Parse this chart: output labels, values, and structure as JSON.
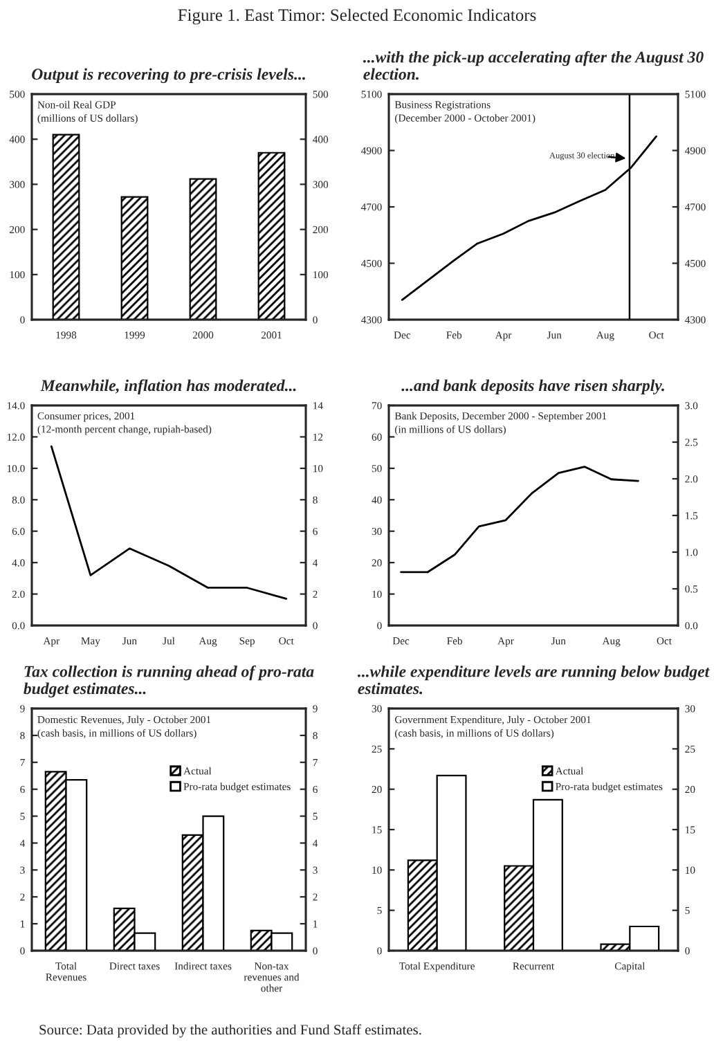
{
  "chart_data": [
    {
      "type": "bar",
      "title": "Output is recovering to pre-crisis levels...",
      "subtitle": "Non-oil Real GDP\n(millions of US dollars)",
      "annotations": [
        "Figure 1. East Timor: Selected Economic Indicators"
      ],
      "categories": [
        "1998",
        "1999",
        "2000",
        "2001"
      ],
      "series": [
        {
          "color": "#000000",
          "values": [
            410,
            272,
            312,
            370
          ]
        }
      ],
      "ylim": [
        0,
        500
      ],
      "yticks": [
        0,
        100,
        200,
        300,
        400,
        500
      ],
      "y2lim": [
        0,
        500
      ],
      "y2ticks": [
        0,
        100,
        200,
        300,
        400,
        500
      ]
    },
    {
      "type": "line",
      "title": "...with the pick-up accelerating after the August 30 election.",
      "subtitle": "Business Registrations\n(December 2000 - October 2001)",
      "annotations": [
        "August 30 election"
      ],
      "x": [
        "2000-12-01",
        "2001-01-01",
        "2001-02-01",
        "2001-03-01",
        "2001-04-01",
        "2001-05-01",
        "2001-06-01",
        "2001-07-01",
        "2001-08-01",
        "2001-09-01",
        "2001-10-01"
      ],
      "series": [
        {
          "color": "#000000",
          "values": [
            4370,
            4440,
            4510,
            4570,
            4605,
            4650,
            4680,
            4720,
            4760,
            4840,
            4950
          ]
        }
      ],
      "xlim": [
        "2000-11-15",
        "2001-10-27"
      ],
      "xticks": [
        {
          "value": "2000-12-01",
          "label": "Dec"
        },
        {
          "value": "2001-02-01",
          "label": "Feb"
        },
        {
          "value": "2001-04-01",
          "label": "Apr"
        },
        {
          "value": "2001-06-01",
          "label": "Jun"
        },
        {
          "value": "2001-08-01",
          "label": "Aug"
        },
        {
          "value": "2001-10-01",
          "label": "Oct"
        }
      ],
      "ylim": [
        4300,
        5100
      ],
      "yticks": [
        4300,
        4500,
        4700,
        4900,
        5100
      ],
      "y2lim": [
        4300,
        5100
      ],
      "y2ticks": [
        4300,
        4500,
        4700,
        4900,
        5100
      ],
      "ref_lines": [
        {
          "axis": "x",
          "value": "2001-08-30",
          "color": "#000000"
        }
      ]
    },
    {
      "type": "line",
      "title": "Meanwhile, inflation has moderated...",
      "subtitle": "Consumer prices, 2001\n(12-month percent change, rupiah-based)",
      "categories": [
        "Apr",
        "May",
        "Jun",
        "Jul",
        "Aug",
        "Sep",
        "Oct"
      ],
      "series": [
        {
          "color": "#000000",
          "values": [
            11.4,
            3.2,
            4.9,
            3.8,
            2.4,
            2.4,
            1.7
          ]
        }
      ],
      "ylim": [
        0,
        14
      ],
      "yticks": [
        {
          "value": 0,
          "label": "0.0"
        },
        {
          "value": 2,
          "label": "2.0"
        },
        {
          "value": 4,
          "label": "4.0"
        },
        {
          "value": 6,
          "label": "6.0"
        },
        {
          "value": 8,
          "label": "8.0"
        },
        {
          "value": 10,
          "label": "10.0"
        },
        {
          "value": 12,
          "label": "12.0"
        },
        {
          "value": 14,
          "label": "14.0"
        }
      ],
      "y2lim": [
        0,
        14
      ],
      "y2ticks": [
        0,
        2,
        4,
        6,
        8,
        10,
        12,
        14
      ]
    },
    {
      "type": "line",
      "title": "...and bank deposits have risen sharply.",
      "subtitle": "Bank Deposits, December 2000 - September 2001\n(in millions of US dollars)",
      "x": [
        "2000-12-01",
        "2001-01-01",
        "2001-02-01",
        "2001-03-01",
        "2001-04-01",
        "2001-05-01",
        "2001-06-01",
        "2001-07-01",
        "2001-08-01",
        "2001-09-01"
      ],
      "series": [
        {
          "color": "#000000",
          "values": [
            17,
            17,
            22.5,
            31.5,
            33.5,
            42,
            48.5,
            50.5,
            46.5,
            46
          ]
        }
      ],
      "xlim": [
        "2000-11-17",
        "2001-10-17"
      ],
      "xticks": [
        {
          "value": "2000-12-01",
          "label": "Dec"
        },
        {
          "value": "2001-02-01",
          "label": "Feb"
        },
        {
          "value": "2001-04-01",
          "label": "Apr"
        },
        {
          "value": "2001-06-01",
          "label": "Jun"
        },
        {
          "value": "2001-08-01",
          "label": "Aug"
        },
        {
          "value": "2001-10-01",
          "label": "Oct"
        }
      ],
      "ylim": [
        0,
        70
      ],
      "yticks": [
        0,
        10,
        20,
        30,
        40,
        50,
        60,
        70
      ],
      "y2lim": [
        0,
        3
      ],
      "y2ticks": [
        {
          "value": 0,
          "label": "0.0"
        },
        {
          "value": 0.5,
          "label": "0.5"
        },
        {
          "value": 1,
          "label": "1.0"
        },
        {
          "value": 1.5,
          "label": "1.5"
        },
        {
          "value": 2,
          "label": "2.0"
        },
        {
          "value": 2.5,
          "label": "2.5"
        },
        {
          "value": 3,
          "label": "3.0"
        }
      ]
    },
    {
      "type": "bar",
      "title": "Tax collection is running ahead of pro-rata budget estimates...",
      "subtitle": "Domestic Revenues, July - October 2001\n(cash basis, in millions of US dollars)",
      "categories": [
        "Total\nRevenues",
        "Direct taxes",
        "Indirect taxes",
        "Non-tax\nrevenues and\nother"
      ],
      "series": [
        {
          "name": "Actual",
          "color": "#000000",
          "values": [
            6.65,
            1.57,
            4.3,
            0.75
          ]
        },
        {
          "name": "Pro-rata budget estimates",
          "color": "#ffffff",
          "values": [
            6.35,
            0.65,
            5.0,
            0.65
          ]
        }
      ],
      "ylim": [
        0,
        9
      ],
      "yticks": [
        0,
        1,
        2,
        3,
        4,
        5,
        6,
        7,
        8,
        9
      ],
      "y2lim": [
        0,
        9
      ],
      "y2ticks": [
        0,
        1,
        2,
        3,
        4,
        5,
        6,
        7,
        8,
        9
      ],
      "legend": "top right"
    },
    {
      "type": "bar",
      "title": "...while expenditure levels are running below budget estimates.",
      "subtitle": "Government Expenditure, July - October 2001\n(cash basis, in millions of US dollars)",
      "annotations": [
        "Source: Data provided by the authorities and Fund Staff estimates."
      ],
      "categories": [
        "Total Expenditure",
        "Recurrent",
        "Capital"
      ],
      "series": [
        {
          "name": "Actual",
          "color": "#000000",
          "values": [
            11.2,
            10.5,
            0.8
          ]
        },
        {
          "name": "Pro-rata budget estimates",
          "color": "#ffffff",
          "values": [
            21.7,
            18.7,
            3.0
          ]
        }
      ],
      "ylim": [
        0,
        30
      ],
      "yticks": [
        0,
        5,
        10,
        15,
        20,
        25,
        30
      ],
      "y2lim": [
        0,
        30
      ],
      "y2ticks": [
        0,
        5,
        10,
        15,
        20,
        25,
        30
      ],
      "legend": "top right"
    }
  ]
}
